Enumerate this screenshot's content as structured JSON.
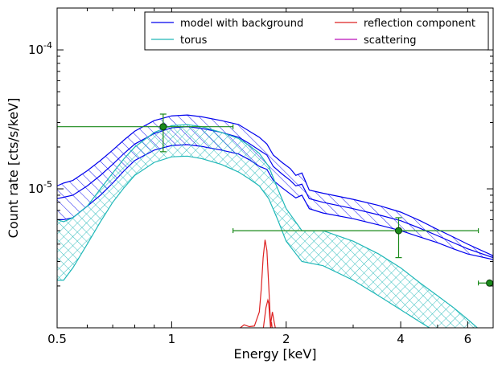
{
  "chart_data": {
    "type": "line",
    "xlabel": "Energy [keV]",
    "ylabel": "Count rate [cts/s/keV]",
    "x_scale": "log",
    "y_scale": "log",
    "xlim": [
      0.5,
      7.0
    ],
    "ylim": [
      1e-06,
      0.0002
    ],
    "x_ticks": [
      {
        "value": 0.5,
        "label": "0.5"
      },
      {
        "value": 1,
        "label": "1"
      },
      {
        "value": 2,
        "label": "2"
      },
      {
        "value": 4,
        "label": "4"
      },
      {
        "value": 6,
        "label": "6"
      }
    ],
    "y_ticks": [
      {
        "value": 1e-05,
        "base": "10",
        "exp": "-5"
      },
      {
        "value": 0.0001,
        "base": "10",
        "exp": "-4"
      }
    ],
    "legend": {
      "placement": "top-right",
      "columns": 2,
      "entries": [
        {
          "label": "model with background",
          "color": "#0000ee"
        },
        {
          "label": "torus",
          "color": "#20b8b8"
        },
        {
          "label": "reflection component",
          "color": "#dd2222"
        },
        {
          "label": "scattering",
          "color": "#bb11bb"
        }
      ]
    },
    "series": [
      {
        "name": "model with background",
        "color": "#0000ee",
        "style": "band",
        "hatch": "diagonal",
        "x": [
          0.5,
          0.52,
          0.55,
          0.6,
          0.65,
          0.7,
          0.75,
          0.8,
          0.9,
          1.0,
          1.1,
          1.2,
          1.35,
          1.5,
          1.6,
          1.7,
          1.78,
          1.85,
          1.95,
          2.05,
          2.12,
          2.2,
          2.3,
          2.5,
          3.0,
          3.5,
          4.0,
          4.5,
          5.0,
          5.5,
          6.0,
          7.0
        ],
        "upper": [
          1.05e-05,
          1.1e-05,
          1.15e-05,
          1.35e-05,
          1.6e-05,
          1.9e-05,
          2.25e-05,
          2.6e-05,
          3.1e-05,
          3.35e-05,
          3.4e-05,
          3.3e-05,
          3.1e-05,
          2.9e-05,
          2.6e-05,
          2.35e-05,
          2.1e-05,
          1.75e-05,
          1.55e-05,
          1.4e-05,
          1.25e-05,
          1.3e-05,
          9.8e-06,
          9.3e-06,
          8.4e-06,
          7.6e-06,
          6.8e-06,
          5.9e-06,
          5.1e-06,
          4.5e-06,
          4e-06,
          3.3e-06
        ],
        "center": [
          8.5e-06,
          8.7e-06,
          9e-06,
          1.05e-05,
          1.25e-05,
          1.5e-05,
          1.8e-05,
          2.1e-05,
          2.5e-05,
          2.75e-05,
          2.8e-05,
          2.72e-05,
          2.55e-05,
          2.35e-05,
          2.12e-05,
          1.9e-05,
          1.75e-05,
          1.45e-05,
          1.28e-05,
          1.15e-05,
          1.05e-05,
          1.08e-05,
          8.5e-06,
          8e-06,
          7.2e-06,
          6.5e-06,
          5.9e-06,
          5.2e-06,
          4.6e-06,
          4.1e-06,
          3.7e-06,
          3.2e-06
        ],
        "lower": [
          6e-06,
          6e-06,
          6.2e-06,
          7.5e-06,
          9e-06,
          1.1e-05,
          1.35e-05,
          1.6e-05,
          1.9e-05,
          2.05e-05,
          2.08e-05,
          2.02e-05,
          1.9e-05,
          1.78e-05,
          1.62e-05,
          1.45e-05,
          1.38e-05,
          1.15e-05,
          1.02e-05,
          9.2e-06,
          8.6e-06,
          9e-06,
          7.2e-06,
          6.7e-06,
          6.1e-06,
          5.5e-06,
          5e-06,
          4.5e-06,
          4.1e-06,
          3.7e-06,
          3.4e-06,
          3.1e-06
        ]
      },
      {
        "name": "torus",
        "color": "#20b8b8",
        "style": "band",
        "hatch": "cross",
        "x": [
          0.5,
          0.52,
          0.55,
          0.6,
          0.65,
          0.7,
          0.75,
          0.8,
          0.9,
          1.0,
          1.1,
          1.2,
          1.35,
          1.5,
          1.6,
          1.7,
          1.8,
          1.9,
          2.0,
          2.2,
          2.5,
          3.0,
          3.5,
          4.0,
          4.5,
          5.0,
          5.5,
          6.0,
          6.5,
          7.0
        ],
        "upper": [
          6e-06,
          5.8e-06,
          6.2e-06,
          7.5e-06,
          1e-05,
          1.3e-05,
          1.65e-05,
          2e-05,
          2.55e-05,
          2.85e-05,
          2.9e-05,
          2.8e-05,
          2.55e-05,
          2.3e-05,
          2.05e-05,
          1.8e-05,
          1.45e-05,
          1e-05,
          7.2e-06,
          5e-06,
          5e-06,
          4.2e-06,
          3.4e-06,
          2.7e-06,
          2.1e-06,
          1.7e-06,
          1.4e-06,
          1.15e-06,
          9.5e-07,
          8e-07
        ],
        "lower": [
          2.2e-06,
          2.2e-06,
          2.7e-06,
          4e-06,
          5.8e-06,
          8e-06,
          1.02e-05,
          1.25e-05,
          1.55e-05,
          1.7e-05,
          1.72e-05,
          1.65e-05,
          1.5e-05,
          1.32e-05,
          1.18e-05,
          1.05e-05,
          8.5e-06,
          6e-06,
          4.2e-06,
          3e-06,
          2.8e-06,
          2.2e-06,
          1.7e-06,
          1.35e-06,
          1.1e-06,
          9.2e-07,
          8e-07,
          7e-07,
          6.2e-07,
          5.5e-07
        ]
      },
      {
        "name": "reflection component",
        "color": "#dd2222",
        "style": "lines",
        "lines": [
          {
            "x": [
              1.45,
              1.5,
              1.55,
              1.6,
              1.65,
              1.7,
              1.72,
              1.74,
              1.76,
              1.78,
              1.8,
              1.82,
              1.84,
              1.86,
              1.88,
              1.9
            ],
            "y": [
              8e-07,
              9.8e-07,
              1.05e-06,
              1.02e-06,
              1.03e-06,
              1.3e-06,
              1.9e-06,
              3.2e-06,
              4.3e-06,
              3.6e-06,
              2e-06,
              1.05e-06,
              1.3e-06,
              1.1e-06,
              9.5e-07,
              8e-07
            ]
          },
          {
            "x": [
              1.73,
              1.75,
              1.77,
              1.79,
              1.8,
              1.81,
              1.82,
              1.83,
              1.85
            ],
            "y": [
              8.5e-07,
              1.1e-06,
              1.4e-06,
              1.58e-06,
              1.5e-06,
              1.2e-06,
              1e-06,
              1.1e-06,
              8.5e-07
            ]
          }
        ]
      }
    ],
    "data_points": {
      "color": "#1a8a1a",
      "points": [
        {
          "x": 0.95,
          "y": 2.8e-05,
          "xlo": 0.5,
          "xhi": 1.45,
          "ylo": 1.85e-05,
          "yhi": 3.45e-05
        },
        {
          "x": 3.95,
          "y": 5e-06,
          "xlo": 1.45,
          "xhi": 6.4,
          "ylo": 3.2e-06,
          "yhi": 6.2e-06
        },
        {
          "x": 6.85,
          "y": 2.1e-06,
          "xlo": 6.4,
          "xhi": 7.3,
          "ylo": 2.1e-06,
          "yhi": 2.1e-06
        }
      ]
    }
  }
}
